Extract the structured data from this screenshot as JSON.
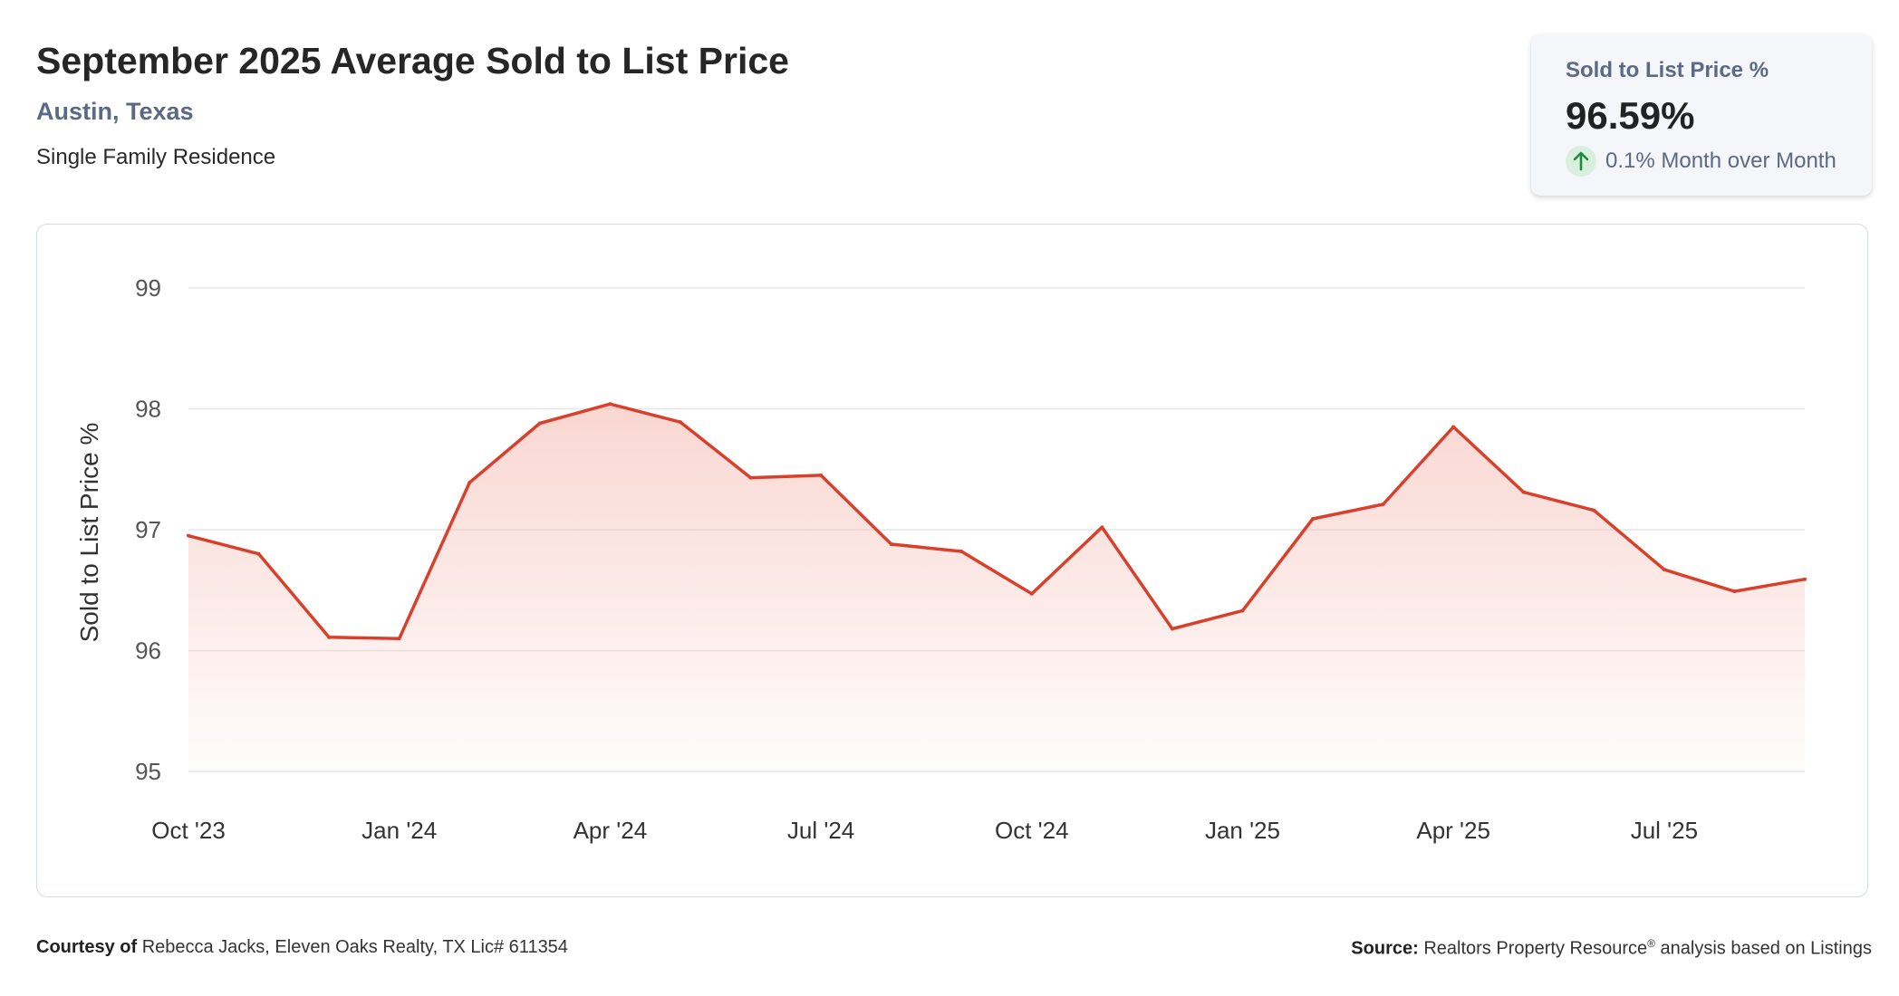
{
  "header": {
    "title": "September 2025 Average Sold to List Price",
    "location": "Austin, Texas",
    "property_type": "Single Family Residence"
  },
  "kpi": {
    "label": "Sold to List Price %",
    "value": "96.59%",
    "change": "0.1% Month over Month",
    "arrow_icon": "arrow-up-icon",
    "trend_color": "#1e8a3c"
  },
  "footer": {
    "courtesy_label": "Courtesy of",
    "courtesy_text": "Rebecca Jacks, Eleven Oaks Realty, TX Lic# 611354",
    "source_label": "Source:",
    "source_text": "Realtors Property Resource",
    "source_mark": "®",
    "source_suffix": "analysis based on Listings"
  },
  "chart_data": {
    "type": "area",
    "ylabel": "Sold to List Price %",
    "ylim": [
      95,
      99
    ],
    "yticks": [
      "95",
      "96",
      "97",
      "98",
      "99"
    ],
    "x_tick_labels": [
      "Oct '23",
      "Jan '24",
      "Apr '24",
      "Jul '24",
      "Oct '24",
      "Jan '25",
      "Apr '25",
      "Jul '25"
    ],
    "grid": true,
    "line_color": "#d9402b",
    "fill_color": "#f4b6ad",
    "x": [
      "2023-10",
      "2023-11",
      "2023-12",
      "2024-01",
      "2024-02",
      "2024-03",
      "2024-04",
      "2024-05",
      "2024-06",
      "2024-07",
      "2024-08",
      "2024-09",
      "2024-10",
      "2024-11",
      "2024-12",
      "2025-01",
      "2025-02",
      "2025-03",
      "2025-04",
      "2025-05",
      "2025-06",
      "2025-07",
      "2025-08",
      "2025-09"
    ],
    "values": [
      96.95,
      96.8,
      96.11,
      96.1,
      97.39,
      97.88,
      98.04,
      97.89,
      97.43,
      97.45,
      96.88,
      96.82,
      96.47,
      97.02,
      96.18,
      96.33,
      97.09,
      97.21,
      97.85,
      97.31,
      97.16,
      96.67,
      96.49,
      96.59
    ]
  }
}
